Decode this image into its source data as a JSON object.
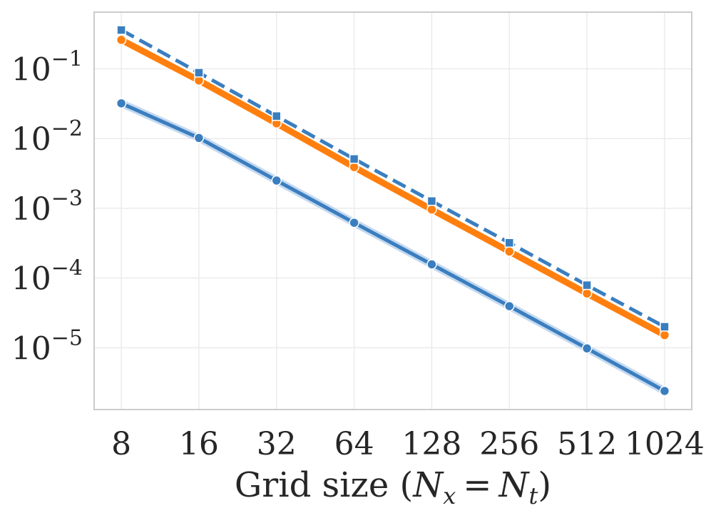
{
  "chart_data": {
    "type": "line",
    "title": "",
    "xlabel": "Grid size (",
    "xlabel_math": {
      "lhs": "N",
      "lhs_sub": "x",
      "eq": "=",
      "rhs": "N",
      "rhs_sub": "t",
      "close": ")"
    },
    "ylabel": "",
    "xscale": "log2",
    "yscale": "log10",
    "x": [
      8,
      16,
      32,
      64,
      128,
      256,
      512,
      1024
    ],
    "x_tick_labels": [
      "8",
      "16",
      "32",
      "64",
      "128",
      "256",
      "512",
      "1024"
    ],
    "y_ticks": [
      {
        "base": "10",
        "exp": "−1",
        "value": 0.1
      },
      {
        "base": "10",
        "exp": "−2",
        "value": 0.01
      },
      {
        "base": "10",
        "exp": "−3",
        "value": 0.001
      },
      {
        "base": "10",
        "exp": "−4",
        "value": 0.0001
      },
      {
        "base": "10",
        "exp": "−5",
        "value": 1e-05
      }
    ],
    "ylim": [
      1.3e-06,
      0.65
    ],
    "xlim_log2": [
      2.65,
      10.35
    ],
    "grid": true,
    "legend": "none",
    "series": [
      {
        "name": "blue dashed squares",
        "color": "#3a7ebf",
        "style": "dashed",
        "marker": "square",
        "values": [
          0.36,
          0.088,
          0.021,
          0.0051,
          0.00127,
          0.00032,
          7.9e-05,
          2e-05
        ]
      },
      {
        "name": "orange thick circles",
        "color": "#ff7f0e",
        "style": "solid",
        "marker": "circle",
        "values": [
          0.26,
          0.068,
          0.0165,
          0.0039,
          0.00096,
          0.00024,
          6e-05,
          1.52e-05
        ]
      },
      {
        "name": "blue solid circles",
        "color": "#3a7ebf",
        "style": "solid",
        "marker": "circle",
        "values": [
          0.032,
          0.0102,
          0.0025,
          0.00062,
          0.000157,
          3.95e-05,
          9.8e-06,
          2.4e-06
        ]
      }
    ]
  }
}
